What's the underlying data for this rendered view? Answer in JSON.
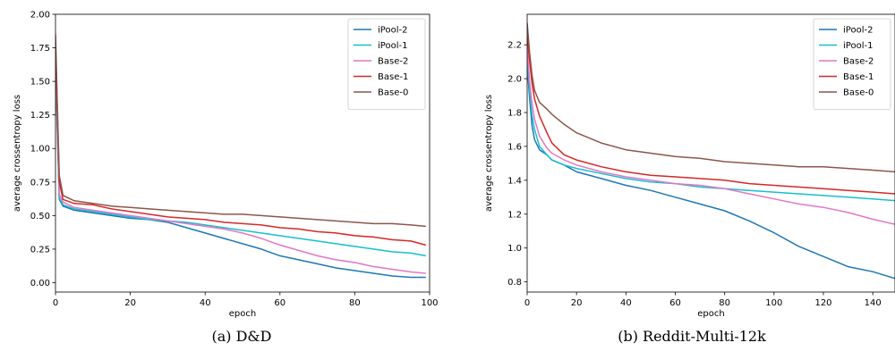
{
  "chart_data": [
    {
      "type": "line",
      "caption": "(a) D&D",
      "xlabel": "epoch",
      "ylabel": "average crossentropy loss",
      "xlim": [
        0,
        100
      ],
      "ylim": [
        -0.07,
        2.0
      ],
      "xticks": [
        0,
        20,
        40,
        60,
        80,
        100
      ],
      "yticks": [
        0.0,
        0.25,
        0.5,
        0.75,
        1.0,
        1.25,
        1.5,
        1.75,
        2.0
      ],
      "ytick_labels": [
        "0.00",
        "0.25",
        "0.50",
        "0.75",
        "1.00",
        "1.25",
        "1.50",
        "1.75",
        "2.00"
      ],
      "grid": false,
      "legend": "top-right",
      "series": [
        {
          "name": "iPool-2",
          "color": "#1f77b4",
          "x": [
            0,
            1,
            2,
            5,
            10,
            15,
            20,
            25,
            30,
            35,
            40,
            45,
            50,
            55,
            60,
            65,
            70,
            75,
            80,
            85,
            90,
            95,
            99
          ],
          "y": [
            1.6,
            0.62,
            0.57,
            0.54,
            0.52,
            0.5,
            0.48,
            0.47,
            0.45,
            0.41,
            0.37,
            0.33,
            0.29,
            0.25,
            0.2,
            0.17,
            0.14,
            0.11,
            0.09,
            0.07,
            0.05,
            0.04,
            0.04
          ]
        },
        {
          "name": "iPool-1",
          "color": "#17becf",
          "x": [
            0,
            1,
            2,
            5,
            10,
            15,
            20,
            25,
            30,
            35,
            40,
            45,
            50,
            55,
            60,
            65,
            70,
            75,
            80,
            85,
            90,
            95,
            99
          ],
          "y": [
            1.7,
            0.63,
            0.58,
            0.55,
            0.53,
            0.51,
            0.49,
            0.47,
            0.46,
            0.45,
            0.43,
            0.41,
            0.39,
            0.37,
            0.35,
            0.33,
            0.31,
            0.29,
            0.27,
            0.25,
            0.23,
            0.22,
            0.2
          ]
        },
        {
          "name": "Base-2",
          "color": "#e377c2",
          "x": [
            0,
            1,
            2,
            5,
            10,
            15,
            20,
            25,
            30,
            35,
            40,
            45,
            50,
            55,
            60,
            65,
            70,
            75,
            80,
            85,
            90,
            95,
            99
          ],
          "y": [
            1.75,
            0.66,
            0.6,
            0.56,
            0.54,
            0.52,
            0.5,
            0.48,
            0.46,
            0.44,
            0.42,
            0.4,
            0.37,
            0.33,
            0.28,
            0.24,
            0.2,
            0.17,
            0.15,
            0.12,
            0.1,
            0.08,
            0.07
          ]
        },
        {
          "name": "Base-1",
          "color": "#d62728",
          "x": [
            0,
            1,
            2,
            5,
            10,
            15,
            20,
            25,
            30,
            35,
            40,
            45,
            50,
            55,
            60,
            65,
            70,
            75,
            80,
            85,
            90,
            95,
            99
          ],
          "y": [
            1.78,
            0.75,
            0.62,
            0.59,
            0.58,
            0.55,
            0.53,
            0.51,
            0.49,
            0.48,
            0.47,
            0.45,
            0.44,
            0.43,
            0.41,
            0.4,
            0.38,
            0.37,
            0.35,
            0.34,
            0.32,
            0.31,
            0.28
          ]
        },
        {
          "name": "Base-0",
          "color": "#8c564b",
          "x": [
            0,
            1,
            2,
            5,
            10,
            15,
            20,
            25,
            30,
            35,
            40,
            45,
            50,
            55,
            60,
            65,
            70,
            75,
            80,
            85,
            90,
            95,
            99
          ],
          "y": [
            1.85,
            0.8,
            0.65,
            0.61,
            0.59,
            0.57,
            0.56,
            0.55,
            0.54,
            0.53,
            0.52,
            0.51,
            0.51,
            0.5,
            0.49,
            0.48,
            0.47,
            0.46,
            0.45,
            0.44,
            0.44,
            0.43,
            0.42
          ]
        }
      ]
    },
    {
      "type": "line",
      "caption": "(b) Reddit-Multi-12k",
      "xlabel": "epoch",
      "ylabel": "average crossentropy loss",
      "xlim": [
        0,
        149
      ],
      "ylim": [
        0.74,
        2.38
      ],
      "xticks": [
        0,
        20,
        40,
        60,
        80,
        100,
        120,
        140
      ],
      "yticks": [
        0.8,
        1.0,
        1.2,
        1.4,
        1.6,
        1.8,
        2.0,
        2.2
      ],
      "ytick_labels": [
        "0.8",
        "1.0",
        "1.2",
        "1.4",
        "1.6",
        "1.8",
        "2.0",
        "2.2"
      ],
      "grid": false,
      "legend": "top-right",
      "series": [
        {
          "name": "iPool-2",
          "color": "#1f77b4",
          "x": [
            0,
            1,
            2,
            3,
            5,
            8,
            10,
            15,
            20,
            30,
            40,
            50,
            60,
            70,
            80,
            90,
            100,
            110,
            120,
            130,
            140,
            149
          ],
          "y": [
            2.08,
            1.88,
            1.72,
            1.64,
            1.58,
            1.55,
            1.52,
            1.49,
            1.45,
            1.41,
            1.37,
            1.34,
            1.3,
            1.26,
            1.22,
            1.16,
            1.09,
            1.01,
            0.95,
            0.89,
            0.86,
            0.82
          ]
        },
        {
          "name": "iPool-1",
          "color": "#17becf",
          "x": [
            0,
            1,
            2,
            3,
            5,
            8,
            10,
            15,
            20,
            30,
            40,
            50,
            60,
            70,
            80,
            90,
            100,
            110,
            120,
            130,
            140,
            149
          ],
          "y": [
            2.12,
            1.92,
            1.78,
            1.7,
            1.6,
            1.55,
            1.52,
            1.49,
            1.47,
            1.44,
            1.41,
            1.39,
            1.38,
            1.36,
            1.35,
            1.34,
            1.33,
            1.32,
            1.31,
            1.3,
            1.29,
            1.28
          ]
        },
        {
          "name": "Base-2",
          "color": "#e377c2",
          "x": [
            0,
            1,
            2,
            3,
            5,
            8,
            10,
            15,
            20,
            30,
            40,
            50,
            60,
            70,
            80,
            90,
            100,
            110,
            120,
            130,
            140,
            149
          ],
          "y": [
            2.18,
            1.98,
            1.85,
            1.76,
            1.66,
            1.59,
            1.56,
            1.52,
            1.49,
            1.45,
            1.42,
            1.4,
            1.38,
            1.37,
            1.35,
            1.32,
            1.29,
            1.26,
            1.24,
            1.21,
            1.17,
            1.14
          ]
        },
        {
          "name": "Base-1",
          "color": "#d62728",
          "x": [
            0,
            1,
            2,
            3,
            5,
            8,
            10,
            15,
            20,
            30,
            40,
            50,
            60,
            70,
            80,
            90,
            100,
            110,
            120,
            130,
            140,
            149
          ],
          "y": [
            2.25,
            2.1,
            1.97,
            1.88,
            1.78,
            1.68,
            1.62,
            1.55,
            1.52,
            1.48,
            1.45,
            1.43,
            1.42,
            1.41,
            1.4,
            1.38,
            1.37,
            1.36,
            1.35,
            1.34,
            1.33,
            1.32
          ]
        },
        {
          "name": "Base-0",
          "color": "#8c564b",
          "x": [
            0,
            1,
            2,
            3,
            5,
            8,
            10,
            15,
            20,
            30,
            40,
            50,
            60,
            70,
            80,
            90,
            100,
            110,
            120,
            130,
            140,
            149
          ],
          "y": [
            2.33,
            2.15,
            2.02,
            1.93,
            1.86,
            1.82,
            1.79,
            1.73,
            1.68,
            1.62,
            1.58,
            1.56,
            1.54,
            1.53,
            1.51,
            1.5,
            1.49,
            1.48,
            1.48,
            1.47,
            1.46,
            1.45
          ]
        }
      ]
    }
  ]
}
